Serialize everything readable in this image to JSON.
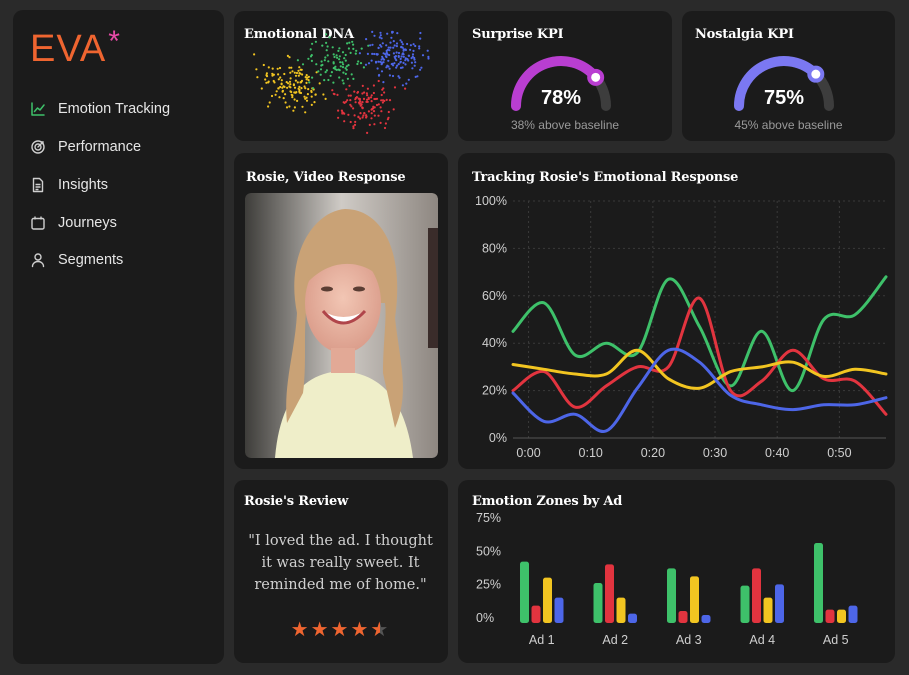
{
  "brand": {
    "name": "EVA",
    "mark": "*"
  },
  "sidebar": {
    "items": [
      {
        "label": "Emotion Tracking",
        "icon": "line-chart-icon",
        "active": true
      },
      {
        "label": "Performance",
        "icon": "target-icon"
      },
      {
        "label": "Insights",
        "icon": "document-icon"
      },
      {
        "label": "Journeys",
        "icon": "calendar-icon"
      },
      {
        "label": "Segments",
        "icon": "user-icon"
      }
    ]
  },
  "cards": {
    "dna": {
      "title": "Emotional DNA"
    },
    "surprise": {
      "title": "Surprise KPI",
      "value": "78%",
      "percent": 78,
      "subtitle": "38% above baseline",
      "color": "#b93ed1"
    },
    "nostalgia": {
      "title": "Nostalgia KPI",
      "value": "75%",
      "percent": 75,
      "subtitle": "45% above baseline",
      "color": "#7b78f2"
    },
    "video": {
      "title": "Rosie, Video Response"
    },
    "tracking": {
      "title": "Tracking Rosie's Emotional Response"
    },
    "review": {
      "title": "Rosie's Review",
      "quote": "\"I loved the ad. I thought it was really sweet. It reminded me of home.\"",
      "rating": 4.5,
      "max_rating": 5
    },
    "zones": {
      "title": "Emotion Zones by Ad"
    }
  },
  "colors": {
    "green": "#3ec16a",
    "red": "#e2343f",
    "blue": "#4d66e8",
    "yellow": "#f2c521",
    "accent": "#ef6530"
  },
  "chart_data": [
    {
      "type": "scatter",
      "title": "Emotional DNA",
      "series": [
        {
          "color": "#f2c521",
          "center": [
            0.2,
            0.55
          ],
          "count": 130
        },
        {
          "color": "#3ec16a",
          "center": [
            0.45,
            0.35
          ],
          "count": 90
        },
        {
          "color": "#4d66e8",
          "center": [
            0.78,
            0.3
          ],
          "count": 150
        },
        {
          "color": "#e2343f",
          "center": [
            0.62,
            0.72
          ],
          "count": 120
        }
      ]
    },
    {
      "type": "line",
      "title": "Tracking Rosie's Emotional Response",
      "x": [
        0,
        5,
        10,
        15,
        20,
        25,
        30,
        35,
        40,
        45,
        50,
        55,
        60
      ],
      "x_tick_labels": [
        "0:00",
        "0:10",
        "0:20",
        "0:30",
        "0:40",
        "0:50"
      ],
      "x_ticks": [
        0,
        10,
        20,
        30,
        40,
        50
      ],
      "y_tick_labels": [
        "0%",
        "20%",
        "40%",
        "60%",
        "80%",
        "100%"
      ],
      "ylim": [
        0,
        100
      ],
      "grid": true,
      "series": [
        {
          "color": "#3ec16a",
          "values": [
            45,
            57,
            35,
            40,
            36,
            67,
            47,
            22,
            45,
            20,
            50,
            52,
            68
          ]
        },
        {
          "color": "#e2343f",
          "values": [
            20,
            28,
            13,
            22,
            30,
            30,
            59,
            20,
            24,
            37,
            25,
            24,
            10
          ]
        },
        {
          "color": "#f2c521",
          "values": [
            31,
            29,
            27,
            27,
            37,
            25,
            21,
            28,
            30,
            32,
            26,
            29,
            27
          ]
        },
        {
          "color": "#4d66e8",
          "values": [
            19,
            7,
            10,
            3,
            21,
            37,
            32,
            18,
            14,
            12,
            14,
            14,
            17
          ]
        }
      ]
    },
    {
      "type": "bar",
      "title": "Emotion Zones by Ad",
      "categories": [
        "Ad 1",
        "Ad 2",
        "Ad 3",
        "Ad 4",
        "Ad 5"
      ],
      "y_tick_labels": [
        "0%",
        "25%",
        "50%",
        "75%"
      ],
      "ylim": [
        0,
        75
      ],
      "series": [
        {
          "color": "#3ec16a",
          "values": [
            46,
            30,
            41,
            28,
            60
          ]
        },
        {
          "color": "#e2343f",
          "values": [
            13,
            44,
            9,
            41,
            10
          ]
        },
        {
          "color": "#f2c521",
          "values": [
            34,
            19,
            35,
            19,
            10
          ]
        },
        {
          "color": "#4d66e8",
          "values": [
            19,
            7,
            6,
            29,
            13
          ]
        }
      ]
    }
  ]
}
